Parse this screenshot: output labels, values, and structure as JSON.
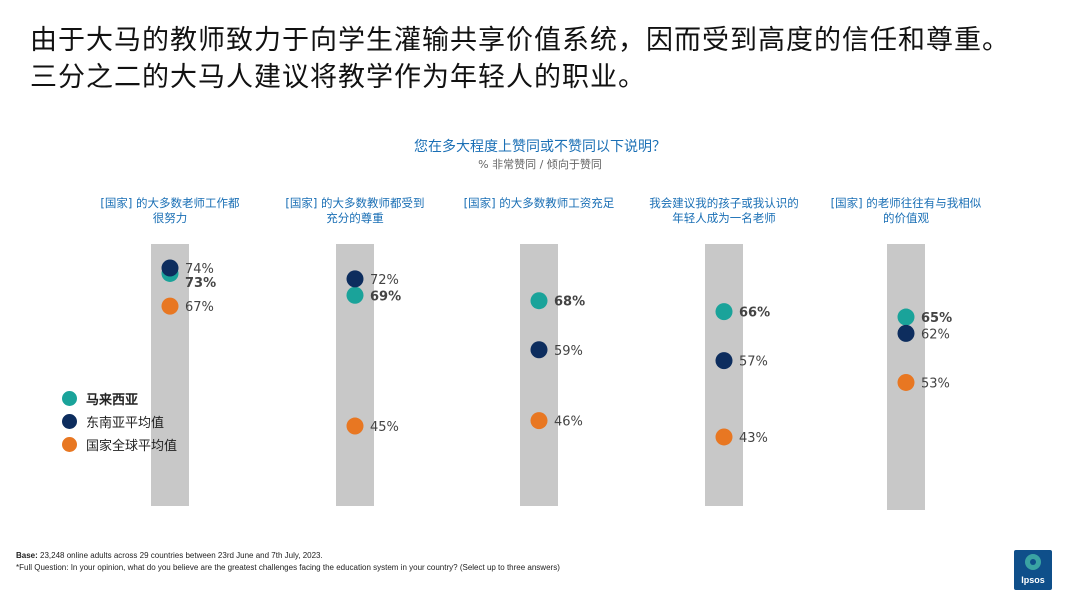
{
  "title": "由于大马的教师致力于向学生灌输共享价值系统，因而受到高度的信任和尊重。三分之二的大马人建议将教学作为年轻人的职业。",
  "question": "您在多大程度上赞同或不赞同以下说明？",
  "subquestion": "% 非常赞同 / 倾向于赞同",
  "legend": [
    {
      "name": "马来西亚",
      "color": "#1aa39a",
      "bold": true
    },
    {
      "name": "东南亚平均值",
      "color": "#0d2d5e",
      "bold": false
    },
    {
      "name": "国家全球平均值",
      "color": "#e87722",
      "bold": false
    }
  ],
  "chart_data": {
    "type": "scatter",
    "categories": [
      "[国家] 的大多数老师工作都很努力",
      "[国家] 的大多数教师都受到充分的尊重",
      "[国家] 的大多数教师工资充足",
      "我会建议我的孩子或我认识的年轻人成为一名老师",
      "[国家] 的老师往往有与我相似的价值观"
    ],
    "category_lines": [
      [
        "[国家] 的大多数老师工作都",
        "很努力"
      ],
      [
        "[国家] 的大多数教师都受到",
        "充分的尊重"
      ],
      [
        "[国家] 的大多数教师工资充足"
      ],
      [
        "我会建议我的孩子或我认识的",
        "年轻人成为一名老师"
      ],
      [
        "[国家] 的老师往往有与我相似",
        "的价值观"
      ]
    ],
    "series": [
      {
        "name": "马来西亚",
        "values": [
          73,
          69,
          68,
          66,
          65
        ]
      },
      {
        "name": "东南亚平均值",
        "values": [
          74,
          72,
          59,
          57,
          62
        ]
      },
      {
        "name": "国家全球平均值",
        "values": [
          67,
          45,
          46,
          43,
          53
        ]
      }
    ],
    "unit": "%"
  },
  "footer": {
    "base_label": "Base:",
    "base_text": " 23,248 online adults across 29 countries between 23rd June and 7th July, 2023.",
    "full_question": "*Full Question: In your opinion, what do you believe are the greatest challenges facing the education system in your country? (Select up to three answers)"
  },
  "logo_text": "Ipsos"
}
